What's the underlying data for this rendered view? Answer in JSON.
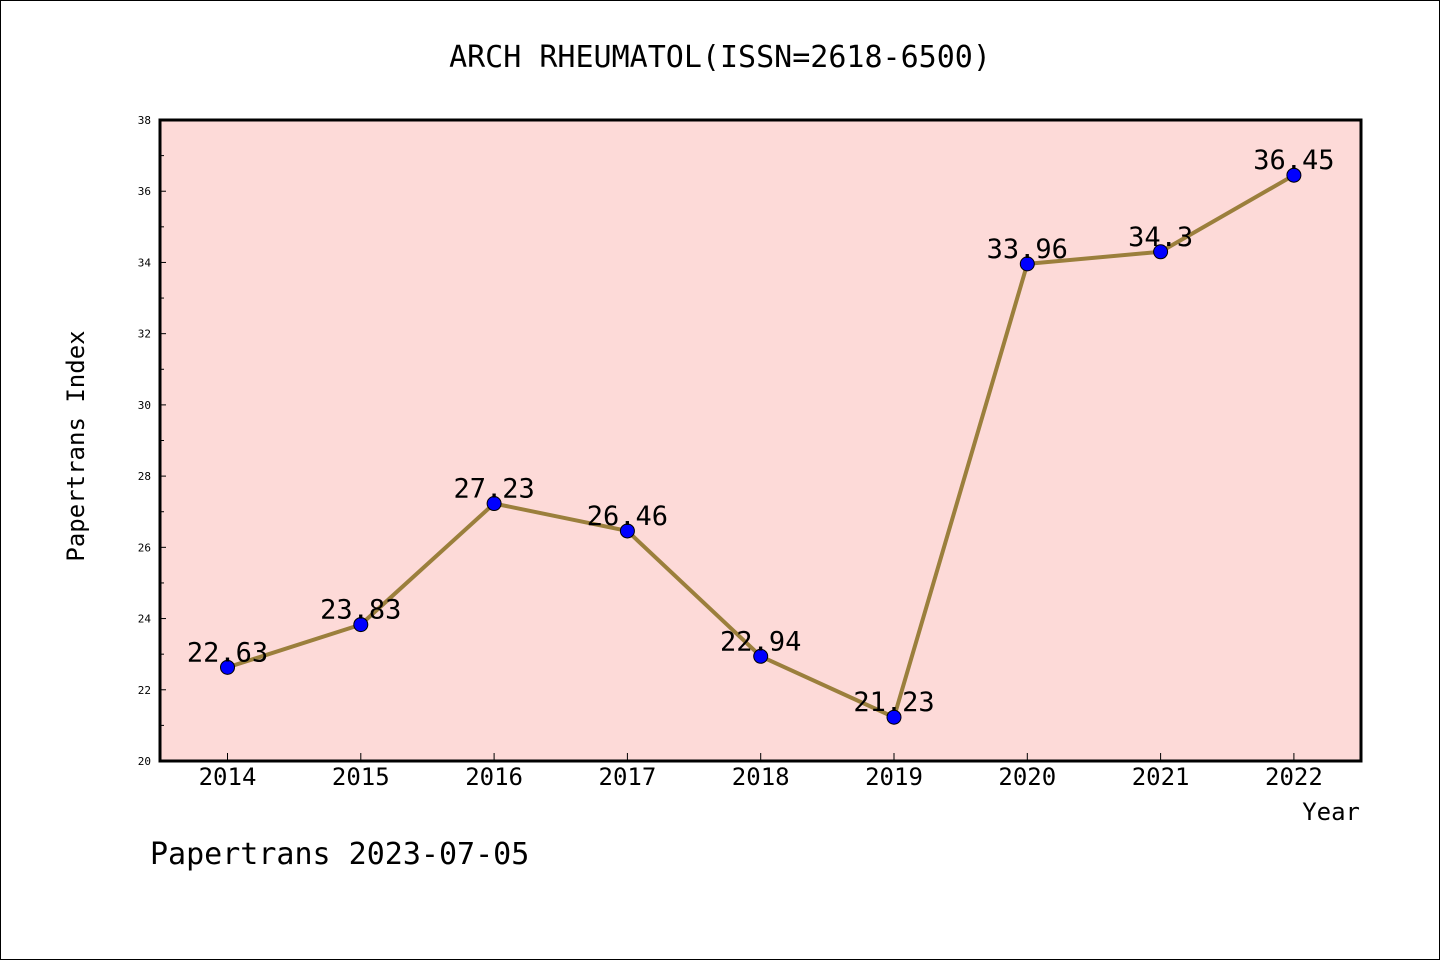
{
  "chart_data": {
    "type": "line",
    "title": "ARCH RHEUMATOL(ISSN=2618-6500)",
    "xlabel": "Year",
    "ylabel": "Papertrans Index",
    "categories": [
      "2014",
      "2015",
      "2016",
      "2017",
      "2018",
      "2019",
      "2020",
      "2021",
      "2022"
    ],
    "series": [
      {
        "values": [
          22.63,
          23.83,
          27.23,
          26.46,
          22.94,
          21.23,
          33.96,
          34.3,
          36.45
        ],
        "labels": [
          "22.63",
          "23.83",
          "27.23",
          "26.46",
          "22.94",
          "21.23",
          "33.96",
          "34.3",
          "36.45"
        ]
      }
    ],
    "ylim": [
      20,
      38
    ],
    "yticks": [
      "20",
      "22",
      "24",
      "26",
      "28",
      "30",
      "32",
      "34",
      "36",
      "38"
    ],
    "grid": false,
    "legend": "none",
    "colors": {
      "plot_background": "#fddad8",
      "line": "#9b7f3c",
      "marker": "#0000ff",
      "marker_edge": "#000000"
    }
  },
  "footer": {
    "text": "Papertrans 2023-07-05"
  }
}
